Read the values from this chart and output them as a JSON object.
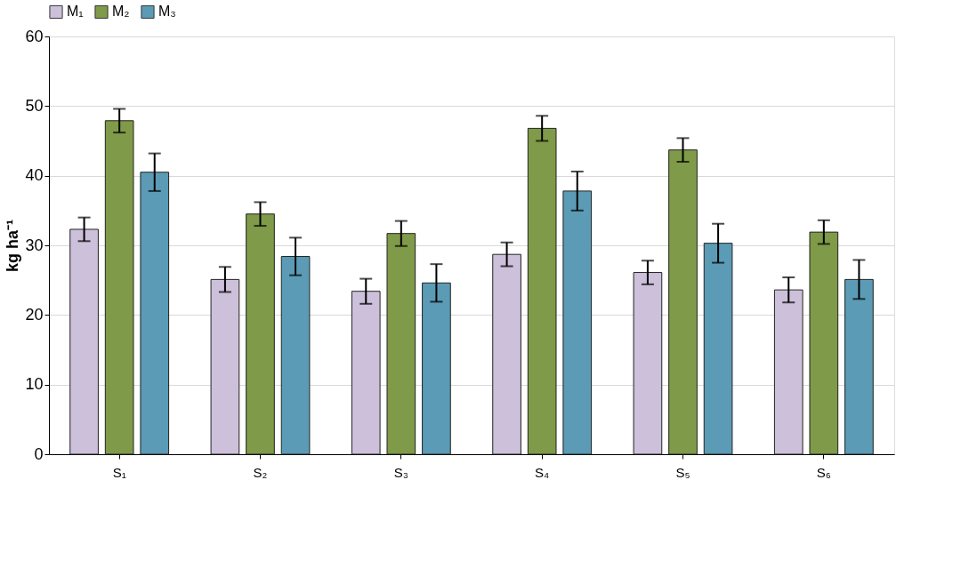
{
  "chart_data": {
    "type": "bar",
    "ylabel": "kg ha⁻¹",
    "categories": [
      "S₁",
      "S₂",
      "S₃",
      "S₄",
      "S₅",
      "S₆"
    ],
    "series": [
      {
        "name": "M₁",
        "color": "#ccc0da",
        "values": [
          32.3,
          25.1,
          23.4,
          28.7,
          26.1,
          23.6
        ],
        "errors": [
          1.7,
          1.8,
          1.8,
          1.7,
          1.7,
          1.8
        ]
      },
      {
        "name": "M₂",
        "color": "#7f9a48",
        "values": [
          47.9,
          34.5,
          31.7,
          46.8,
          43.7,
          31.9
        ],
        "errors": [
          1.7,
          1.7,
          1.8,
          1.8,
          1.7,
          1.7
        ]
      },
      {
        "name": "M₃",
        "color": "#5b9bb5",
        "values": [
          40.5,
          28.4,
          24.6,
          37.8,
          30.3,
          25.1
        ],
        "errors": [
          2.7,
          2.7,
          2.7,
          2.8,
          2.8,
          2.8
        ]
      }
    ],
    "ylim": [
      0,
      60
    ],
    "yticks": [
      0,
      10,
      20,
      30,
      40,
      50,
      60
    ],
    "grid": "y",
    "legend": "top"
  }
}
